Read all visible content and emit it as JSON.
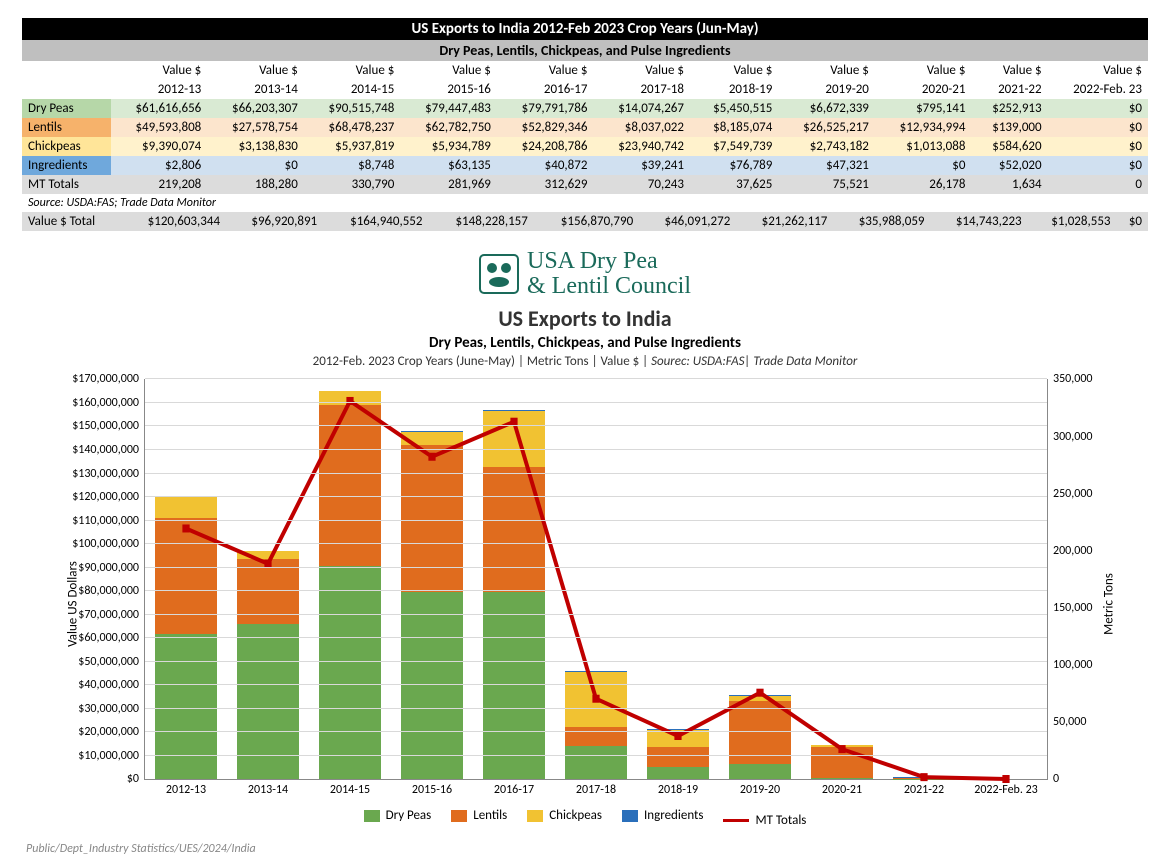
{
  "table": {
    "title": "US Exports to India  2012-Feb 2023 Crop Years (Jun-May)",
    "subtitle": "Dry Peas, Lentils, Chickpeas, and Pulse Ingredients",
    "col_label_top": "Value $",
    "years": [
      "2012-13",
      "2013-14",
      "2014-15",
      "2015-16",
      "2016-17",
      "2017-18",
      "2018-19",
      "2019-20",
      "2020-21",
      "2021-22",
      "2022-Feb. 23"
    ],
    "rows": {
      "drypeas": {
        "label": "Dry Peas",
        "vals": [
          "$61,616,656",
          "$66,203,307",
          "$90,515,748",
          "$79,447,483",
          "$79,791,786",
          "$14,074,267",
          "$5,450,515",
          "$6,672,339",
          "$795,141",
          "$252,913",
          "$0"
        ]
      },
      "lentils": {
        "label": "Lentils",
        "vals": [
          "$49,593,808",
          "$27,578,754",
          "$68,478,237",
          "$62,782,750",
          "$52,829,346",
          "$8,037,022",
          "$8,185,074",
          "$26,525,217",
          "$12,934,994",
          "$139,000",
          "$0"
        ]
      },
      "chickpeas": {
        "label": "Chickpeas",
        "vals": [
          "$9,390,074",
          "$3,138,830",
          "$5,937,819",
          "$5,934,789",
          "$24,208,786",
          "$23,940,742",
          "$7,549,739",
          "$2,743,182",
          "$1,013,088",
          "$584,620",
          "$0"
        ]
      },
      "ingredients": {
        "label": "Ingredients",
        "vals": [
          "$2,806",
          "$0",
          "$8,748",
          "$63,135",
          "$40,872",
          "$39,241",
          "$76,789",
          "$47,321",
          "$0",
          "$52,020",
          "$0"
        ]
      },
      "mttotals": {
        "label": "MT Totals",
        "vals": [
          "219,208",
          "188,280",
          "330,790",
          "281,969",
          "312,629",
          "70,243",
          "37,625",
          "75,521",
          "26,178",
          "1,634",
          "0"
        ]
      }
    },
    "source": "Source: USDA:FAS; Trade Data Monitor",
    "total": {
      "label": "Value $ Total",
      "vals": [
        "$120,603,344",
        "$96,920,891",
        "$164,940,552",
        "$148,228,157",
        "$156,870,790",
        "$46,091,272",
        "$21,262,117",
        "$35,988,059",
        "$14,743,223",
        "$1,028,553",
        "$0"
      ]
    }
  },
  "logo": {
    "line1": "USA Dry Pea",
    "line2": "& Lentil Council",
    "color": "#1a6a5a"
  },
  "chart": {
    "title": "US Exports to India",
    "subtitle": "Dry Peas, Lentils, Chickpeas, and Pulse Ingredients",
    "meta": "2012-Feb.  2023 Crop Years (June-May)   |   Metric Tons  |  Value $   |  ",
    "meta_source": "Sourec: USDA:FAS| Trade Data Monitor",
    "y_left_label": "Value US Dollars",
    "y_right_label": "Metric Tons",
    "y_left": {
      "min": 0,
      "max": 170000000,
      "step": 10000000,
      "ticks": [
        "$0",
        "$10,000,000",
        "$20,000,000",
        "$30,000,000",
        "$40,000,000",
        "$50,000,000",
        "$60,000,000",
        "$70,000,000",
        "$80,000,000",
        "$90,000,000",
        "$100,000,000",
        "$110,000,000",
        "$120,000,000",
        "$130,000,000",
        "$140,000,000",
        "$150,000,000",
        "$160,000,000",
        "$170,000,000"
      ]
    },
    "y_right": {
      "min": 0,
      "max": 350000,
      "step": 50000,
      "ticks": [
        "0",
        "50,000",
        "100,000",
        "150,000",
        "200,000",
        "250,000",
        "300,000",
        "350,000"
      ]
    },
    "categories": [
      "2012-13",
      "2013-14",
      "2014-15",
      "2015-16",
      "2016-17",
      "2017-18",
      "2018-19",
      "2019-20",
      "2020-21",
      "2021-22",
      "2022-Feb. 23"
    ],
    "colors": {
      "drypeas": "#6aa84f",
      "lentils": "#e06c1e",
      "chickpeas": "#f1c232",
      "ingredients": "#2a6fbb",
      "line": "#c00000",
      "grid": "#d9d9d9",
      "bg": "#ffffff"
    },
    "series": {
      "drypeas": [
        61616656,
        66203307,
        90515748,
        79447483,
        79791786,
        14074267,
        5450515,
        6672339,
        795141,
        252913,
        0
      ],
      "lentils": [
        49593808,
        27578754,
        68478237,
        62782750,
        52829346,
        8037022,
        8185074,
        26525217,
        12934994,
        139000,
        0
      ],
      "chickpeas": [
        9390074,
        3138830,
        5937819,
        5934789,
        24208786,
        23940742,
        7549739,
        2743182,
        1013088,
        584620,
        0
      ],
      "ingredients": [
        2806,
        0,
        8748,
        63135,
        40872,
        39241,
        76789,
        47321,
        0,
        52020,
        0
      ]
    },
    "mt_totals": [
      219208,
      188280,
      330790,
      281969,
      312629,
      70243,
      37625,
      75521,
      26178,
      1634,
      0
    ],
    "legend": [
      {
        "label": "Dry Peas",
        "color": "#6aa84f",
        "type": "box"
      },
      {
        "label": "Lentils",
        "color": "#e06c1e",
        "type": "box"
      },
      {
        "label": "Chickpeas",
        "color": "#f1c232",
        "type": "box"
      },
      {
        "label": "Ingredients",
        "color": "#2a6fbb",
        "type": "box"
      },
      {
        "label": "MT Totals",
        "color": "#c00000",
        "type": "line"
      }
    ]
  },
  "footer": "Public/Dept_Industry Statistics/UES/2024/India"
}
